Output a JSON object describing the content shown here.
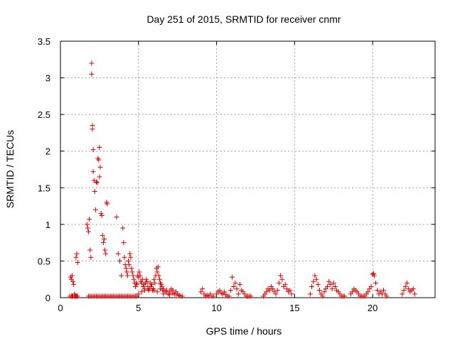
{
  "chart_data": {
    "type": "scatter",
    "title": "Day 251 of 2015, SRMTID for receiver cnmr",
    "xlabel": "GPS time / hours",
    "ylabel": "SRMTID / TECUs",
    "xlim": [
      0,
      24
    ],
    "ylim": [
      0,
      3.5
    ],
    "xticks": [
      0,
      5,
      10,
      15,
      20
    ],
    "yticks": [
      0,
      0.5,
      1,
      1.5,
      2,
      2.5,
      3,
      3.5
    ],
    "xtick_labels": [
      "0",
      "5",
      "10",
      "15",
      "20"
    ],
    "ytick_labels": [
      "0",
      "0.5",
      "1",
      "1.5",
      "2",
      "2.5",
      "3",
      "3.5"
    ],
    "grid": true,
    "legend": "none",
    "marker": "plus",
    "color": "#e00000",
    "series": [
      {
        "x": [
          0.6,
          0.65,
          0.7,
          0.75,
          0.8,
          0.85,
          0.9,
          0.95,
          1.0,
          1.05,
          1.1,
          0.7,
          0.75,
          0.8,
          0.9,
          0.95,
          1.0,
          1.05,
          1.1,
          1.7,
          1.75,
          1.8,
          1.85,
          1.9,
          1.95,
          2.0,
          2.0,
          2.05,
          2.05,
          2.1,
          2.1,
          2.15,
          2.2,
          2.25,
          2.3,
          2.35,
          2.4,
          2.45,
          2.5,
          2.5,
          2.55,
          2.6,
          2.65,
          2.7,
          2.75,
          2.8,
          2.85,
          2.9,
          2.95,
          3.0,
          1.8,
          1.9,
          2.0,
          2.1,
          2.2,
          2.3,
          2.4,
          2.5,
          2.6,
          2.7,
          2.8,
          2.9,
          3.0,
          3.1,
          3.2,
          3.3,
          3.4,
          3.5,
          3.6,
          3.7,
          3.8,
          3.9,
          4.0,
          4.1,
          4.2,
          4.3,
          4.4,
          4.5,
          4.6,
          4.7,
          4.8,
          4.9,
          3.6,
          3.7,
          3.8,
          3.9,
          4.0,
          4.05,
          4.1,
          4.15,
          4.2,
          4.25,
          4.3,
          4.35,
          4.4,
          4.45,
          4.5,
          4.55,
          4.6,
          4.65,
          4.7,
          4.75,
          4.8,
          4.85,
          4.9,
          4.95,
          5.0,
          5.05,
          5.1,
          5.15,
          5.2,
          5.25,
          5.3,
          5.35,
          5.4,
          5.45,
          5.5,
          5.55,
          5.6,
          5.65,
          5.7,
          5.75,
          5.8,
          5.85,
          5.9,
          5.95,
          6.0,
          6.05,
          6.1,
          6.15,
          6.2,
          6.25,
          6.3,
          6.35,
          6.4,
          6.45,
          6.5,
          6.55,
          6.6,
          6.7,
          6.8,
          6.9,
          7.0,
          7.1,
          7.2,
          7.3,
          7.4,
          7.5,
          7.6,
          7.7,
          7.8,
          5.0,
          5.2,
          5.4,
          5.6,
          5.8,
          6.0,
          6.2,
          6.4,
          6.6,
          6.8,
          7.0,
          7.2,
          7.4,
          7.6,
          9.0,
          9.1,
          9.2,
          9.3,
          9.4,
          9.5,
          9.6,
          9.7,
          9.8,
          10.0,
          10.1,
          10.2,
          10.3,
          10.4,
          10.5,
          10.6,
          10.7,
          10.8,
          10.9,
          11.0,
          11.1,
          11.2,
          11.3,
          11.4,
          11.5,
          11.6,
          11.7,
          11.8,
          11.9,
          12.0,
          12.1,
          12.2,
          13.0,
          13.1,
          13.2,
          13.3,
          13.4,
          13.5,
          13.6,
          13.7,
          13.8,
          13.9,
          14.0,
          14.1,
          14.2,
          14.3,
          14.4,
          14.5,
          14.6,
          14.7,
          14.8,
          16.0,
          16.1,
          16.2,
          16.3,
          16.4,
          16.5,
          16.6,
          16.7,
          16.8,
          16.9,
          17.0,
          17.1,
          17.2,
          17.3,
          17.4,
          17.5,
          17.6,
          17.7,
          17.8,
          17.9,
          18.0,
          18.1,
          18.2,
          18.6,
          18.7,
          18.8,
          18.9,
          19.0,
          19.1,
          19.2,
          19.3,
          19.4,
          19.5,
          19.6,
          19.7,
          19.8,
          19.9,
          20.0,
          20.05,
          20.1,
          20.2,
          20.3,
          20.4,
          20.5,
          20.6,
          20.7,
          20.8,
          20.9,
          21.9,
          22.0,
          22.1,
          22.2,
          22.3,
          22.4,
          22.5,
          22.6,
          22.7
        ],
        "y": [
          0.02,
          0.28,
          0.25,
          0.3,
          0.22,
          0.18,
          0.05,
          0.02,
          0.55,
          0.6,
          0.48,
          0.02,
          0.02,
          0.02,
          0.02,
          0.02,
          0.02,
          0.02,
          0.02,
          1.0,
          0.95,
          0.9,
          1.07,
          0.65,
          0.55,
          3.2,
          3.05,
          2.35,
          2.3,
          2.02,
          1.72,
          1.6,
          1.45,
          1.2,
          1.58,
          1.57,
          1.9,
          1.88,
          1.65,
          2.05,
          1.78,
          1.15,
          1.12,
          0.85,
          0.75,
          0.8,
          0.65,
          0.6,
          1.3,
          1.28,
          0.02,
          0.02,
          0.02,
          0.02,
          0.02,
          0.02,
          0.02,
          0.02,
          0.02,
          0.02,
          0.02,
          0.02,
          0.02,
          0.02,
          0.02,
          0.02,
          0.02,
          0.02,
          0.02,
          0.02,
          0.02,
          0.02,
          0.02,
          0.02,
          0.02,
          0.02,
          0.02,
          0.02,
          0.02,
          0.02,
          0.02,
          0.02,
          1.1,
          0.6,
          0.5,
          0.3,
          0.95,
          0.75,
          0.55,
          0.45,
          0.4,
          0.35,
          0.3,
          0.5,
          0.45,
          0.6,
          0.55,
          0.4,
          0.35,
          0.3,
          0.25,
          0.2,
          0.15,
          0.2,
          0.18,
          0.3,
          0.28,
          0.35,
          0.3,
          0.22,
          0.2,
          0.25,
          0.15,
          0.18,
          0.12,
          0.2,
          0.25,
          0.22,
          0.15,
          0.1,
          0.12,
          0.2,
          0.15,
          0.18,
          0.1,
          0.12,
          0.25,
          0.2,
          0.3,
          0.4,
          0.35,
          0.42,
          0.3,
          0.25,
          0.2,
          0.18,
          0.15,
          0.1,
          0.12,
          0.08,
          0.1,
          0.05,
          0.08,
          0.12,
          0.1,
          0.05,
          0.08,
          0.05,
          0.03,
          0.02,
          0.02,
          0.05,
          0.08,
          0.1,
          0.12,
          0.15,
          0.1,
          0.08,
          0.12,
          0.05,
          0.08,
          0.04,
          0.06,
          0.05,
          0.03,
          0.08,
          0.12,
          0.05,
          0.02,
          0.03,
          0.02,
          0.05,
          0.02,
          0.02,
          0.05,
          0.08,
          0.1,
          0.06,
          0.05,
          0.08,
          0.04,
          0.02,
          0.02,
          0.1,
          0.28,
          0.15,
          0.2,
          0.12,
          0.05,
          0.18,
          0.1,
          0.08,
          0.05,
          0.02,
          0.02,
          0.02,
          0.02,
          0.02,
          0.05,
          0.08,
          0.12,
          0.1,
          0.15,
          0.12,
          0.08,
          0.05,
          0.1,
          0.2,
          0.3,
          0.25,
          0.15,
          0.18,
          0.12,
          0.08,
          0.1,
          0.05,
          0.05,
          0.15,
          0.22,
          0.3,
          0.25,
          0.18,
          0.1,
          0.05,
          0.02,
          0.08,
          0.12,
          0.15,
          0.22,
          0.18,
          0.12,
          0.2,
          0.15,
          0.1,
          0.08,
          0.05,
          0.02,
          0.02,
          0.02,
          0.05,
          0.08,
          0.12,
          0.1,
          0.08,
          0.05,
          0.02,
          0.02,
          0.02,
          0.02,
          0.05,
          0.08,
          0.12,
          0.15,
          0.32,
          0.33,
          0.3,
          0.2,
          0.1,
          0.05,
          0.08,
          0.05,
          0.1,
          0.05,
          0.02,
          0.05,
          0.1,
          0.15,
          0.2,
          0.12,
          0.08,
          0.1,
          0.12,
          0.05
        ]
      }
    ]
  }
}
